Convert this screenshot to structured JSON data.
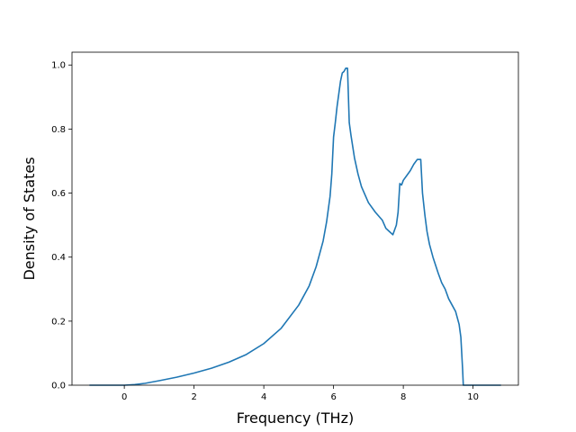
{
  "chart_data": {
    "type": "line",
    "title": "",
    "xlabel": "Frequency (THz)",
    "ylabel": "Density of States",
    "xlim": [
      -1.5,
      11.3
    ],
    "ylim": [
      0.0,
      1.04
    ],
    "grid": false,
    "xticks": [
      0,
      2,
      4,
      6,
      8,
      10
    ],
    "xtick_labels": [
      "0",
      "2",
      "4",
      "6",
      "8",
      "10"
    ],
    "yticks": [
      0.0,
      0.2,
      0.4,
      0.6,
      0.8,
      1.0
    ],
    "ytick_labels": [
      "0.0",
      "0.2",
      "0.4",
      "0.6",
      "0.8",
      "1.0"
    ],
    "series": [
      {
        "color": "#1f77b4",
        "x": [
          -1.0,
          -0.5,
          0.0,
          0.3,
          0.6,
          1.0,
          1.5,
          2.0,
          2.5,
          3.0,
          3.5,
          4.0,
          4.5,
          5.0,
          5.3,
          5.5,
          5.7,
          5.8,
          5.85,
          5.9,
          5.95,
          6.0,
          6.05,
          6.1,
          6.15,
          6.2,
          6.25,
          6.3,
          6.35,
          6.4,
          6.45,
          6.5,
          6.6,
          6.7,
          6.8,
          7.0,
          7.2,
          7.4,
          7.5,
          7.6,
          7.7,
          7.8,
          7.85,
          7.9,
          7.95,
          8.0,
          8.1,
          8.2,
          8.3,
          8.4,
          8.5,
          8.55,
          8.62,
          8.68,
          8.75,
          8.85,
          9.0,
          9.1,
          9.2,
          9.3,
          9.4,
          9.5,
          9.6,
          9.65,
          9.7,
          9.72,
          9.75,
          9.77,
          9.8,
          9.9,
          10.0,
          10.3,
          10.8
        ],
        "y": [
          0.0,
          0.0,
          0.0,
          0.002,
          0.006,
          0.014,
          0.025,
          0.038,
          0.053,
          0.072,
          0.096,
          0.13,
          0.178,
          0.25,
          0.31,
          0.37,
          0.45,
          0.51,
          0.55,
          0.59,
          0.66,
          0.775,
          0.82,
          0.87,
          0.91,
          0.95,
          0.975,
          0.98,
          0.99,
          0.99,
          0.82,
          0.78,
          0.71,
          0.66,
          0.62,
          0.57,
          0.54,
          0.515,
          0.49,
          0.48,
          0.47,
          0.5,
          0.54,
          0.63,
          0.625,
          0.64,
          0.655,
          0.67,
          0.69,
          0.705,
          0.705,
          0.6,
          0.53,
          0.48,
          0.44,
          0.4,
          0.35,
          0.32,
          0.3,
          0.27,
          0.25,
          0.23,
          0.19,
          0.15,
          0.05,
          0.0,
          0.0,
          0.0,
          0.0,
          0.0,
          0.0,
          0.0,
          0.0
        ]
      }
    ]
  }
}
